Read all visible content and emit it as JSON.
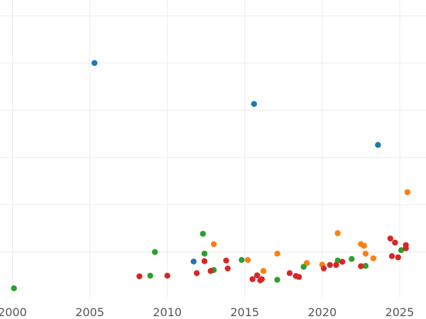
{
  "chart_data": {
    "type": "scatter",
    "title": "",
    "xlabel": "",
    "ylabel": "",
    "xlim": [
      1999.2,
      2026.7
    ],
    "ylim": [
      -1.45,
      8.0
    ],
    "x_ticks": [
      2000,
      2005,
      2010,
      2015,
      2020,
      2025
    ],
    "x_tick_labels": [
      "2000",
      "2005",
      "2010",
      "2015",
      "2020",
      "2025"
    ],
    "y_gridlines": [
      0,
      1.5,
      3,
      4.5,
      6,
      7.5
    ],
    "grid": true,
    "legend": "none",
    "series": [
      {
        "color": "#1f77b4",
        "points": [
          {
            "x": 2005.3,
            "y": 6.0
          },
          {
            "x": 2015.6,
            "y": 4.7
          },
          {
            "x": 2023.6,
            "y": 3.4
          },
          {
            "x": 2011.7,
            "y": -0.3
          }
        ]
      },
      {
        "color": "#ff7f0e",
        "points": [
          {
            "x": 2013.0,
            "y": 0.25
          },
          {
            "x": 2015.2,
            "y": -0.25
          },
          {
            "x": 2016.2,
            "y": -0.6
          },
          {
            "x": 2017.1,
            "y": -0.05
          },
          {
            "x": 2019.0,
            "y": -0.35
          },
          {
            "x": 2020.0,
            "y": -0.4
          },
          {
            "x": 2021.0,
            "y": 0.6
          },
          {
            "x": 2022.5,
            "y": 0.25
          },
          {
            "x": 2022.7,
            "y": 0.2
          },
          {
            "x": 2022.8,
            "y": -0.05
          },
          {
            "x": 2023.3,
            "y": -0.2
          },
          {
            "x": 2025.5,
            "y": 1.9
          }
        ]
      },
      {
        "color": "#2ca02c",
        "points": [
          {
            "x": 2000.1,
            "y": -1.15
          },
          {
            "x": 2008.9,
            "y": -0.75
          },
          {
            "x": 2009.2,
            "y": 0.0
          },
          {
            "x": 2012.3,
            "y": 0.58
          },
          {
            "x": 2012.4,
            "y": -0.05
          },
          {
            "x": 2013.0,
            "y": -0.57
          },
          {
            "x": 2014.8,
            "y": -0.25
          },
          {
            "x": 2017.1,
            "y": -0.88
          },
          {
            "x": 2018.8,
            "y": -0.47
          },
          {
            "x": 2021.0,
            "y": -0.27
          },
          {
            "x": 2021.9,
            "y": -0.22
          },
          {
            "x": 2022.8,
            "y": -0.44
          },
          {
            "x": 2025.1,
            "y": 0.06
          }
        ]
      },
      {
        "color": "#d62728",
        "points": [
          {
            "x": 2008.2,
            "y": -0.77
          },
          {
            "x": 2010.0,
            "y": -0.75
          },
          {
            "x": 2011.9,
            "y": -0.67
          },
          {
            "x": 2012.4,
            "y": -0.29
          },
          {
            "x": 2012.8,
            "y": -0.6
          },
          {
            "x": 2013.8,
            "y": -0.27
          },
          {
            "x": 2013.9,
            "y": -0.52
          },
          {
            "x": 2015.5,
            "y": -0.86
          },
          {
            "x": 2015.8,
            "y": -0.74
          },
          {
            "x": 2016.0,
            "y": -0.9
          },
          {
            "x": 2016.1,
            "y": -0.86
          },
          {
            "x": 2017.9,
            "y": -0.67
          },
          {
            "x": 2018.3,
            "y": -0.76
          },
          {
            "x": 2018.5,
            "y": -0.79
          },
          {
            "x": 2020.1,
            "y": -0.52
          },
          {
            "x": 2020.5,
            "y": -0.41
          },
          {
            "x": 2020.9,
            "y": -0.41
          },
          {
            "x": 2021.3,
            "y": -0.31
          },
          {
            "x": 2022.5,
            "y": -0.45
          },
          {
            "x": 2024.4,
            "y": 0.43
          },
          {
            "x": 2024.5,
            "y": -0.13
          },
          {
            "x": 2024.7,
            "y": 0.3
          },
          {
            "x": 2024.9,
            "y": -0.17
          },
          {
            "x": 2025.4,
            "y": 0.22
          },
          {
            "x": 2025.4,
            "y": 0.12
          }
        ]
      }
    ]
  }
}
